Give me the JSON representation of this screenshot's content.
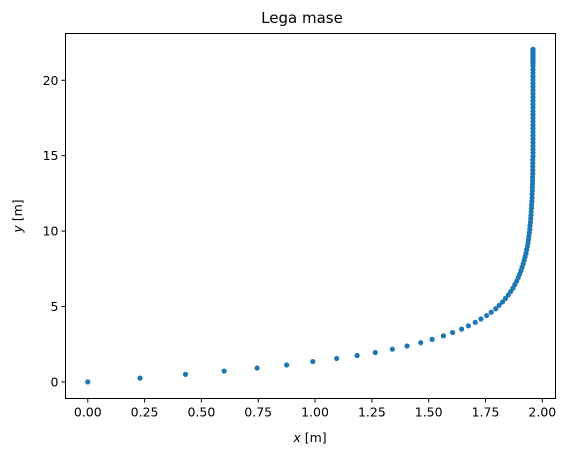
{
  "chart_data": {
    "type": "scatter",
    "title": "Lega mase",
    "xlabel_var": "x",
    "xlabel_unit": " [m]",
    "ylabel_var": "y",
    "ylabel_unit": " [m]",
    "xlim": [
      -0.098,
      2.058
    ],
    "ylim": [
      -1.1,
      23.1
    ],
    "xticks": [
      0.0,
      0.25,
      0.5,
      0.75,
      1.0,
      1.25,
      1.5,
      1.75,
      2.0
    ],
    "xtick_labels": [
      "0.00",
      "0.25",
      "0.50",
      "0.75",
      "1.00",
      "1.25",
      "1.50",
      "1.75",
      "2.00"
    ],
    "yticks": [
      0,
      5,
      10,
      15,
      20
    ],
    "ytick_labels": [
      "0",
      "5",
      "10",
      "15",
      "20"
    ],
    "grid": false,
    "marker_color": "#1f77b4",
    "series": [
      {
        "x": [
          0.0,
          0.23,
          0.43,
          0.6,
          0.745,
          0.875,
          0.99,
          1.095,
          1.185,
          1.265,
          1.34,
          1.405,
          1.465,
          1.515,
          1.565,
          1.605,
          1.645,
          1.675,
          1.705,
          1.73,
          1.755,
          1.775,
          1.795,
          1.81,
          1.825,
          1.838,
          1.85,
          1.861,
          1.871,
          1.879,
          1.887,
          1.894,
          1.9,
          1.906,
          1.911,
          1.916,
          1.92,
          1.924,
          1.928,
          1.931,
          1.934,
          1.937,
          1.939,
          1.941,
          1.943,
          1.945,
          1.946,
          1.948,
          1.949,
          1.95,
          1.951,
          1.952,
          1.953,
          1.954,
          1.955,
          1.955,
          1.956,
          1.956,
          1.957,
          1.957,
          1.957,
          1.958,
          1.958,
          1.958,
          1.958,
          1.958,
          1.959,
          1.959,
          1.959,
          1.959,
          1.959,
          1.959,
          1.959,
          1.959,
          1.959,
          1.959,
          1.959,
          1.959,
          1.959,
          1.959,
          1.959,
          1.959,
          1.959,
          1.959,
          1.959,
          1.959,
          1.959,
          1.959,
          1.959,
          1.959,
          1.959,
          1.959,
          1.959,
          1.959,
          1.959,
          1.959,
          1.959,
          1.959,
          1.959,
          1.959,
          1.959,
          1.959,
          1.959
        ],
        "y": [
          0.0,
          0.25,
          0.5,
          0.72,
          0.92,
          1.12,
          1.35,
          1.55,
          1.75,
          1.95,
          2.17,
          2.38,
          2.6,
          2.82,
          3.05,
          3.28,
          3.5,
          3.72,
          3.95,
          4.17,
          4.4,
          4.62,
          4.85,
          5.08,
          5.3,
          5.53,
          5.76,
          5.99,
          6.22,
          6.45,
          6.68,
          6.91,
          7.14,
          7.37,
          7.6,
          7.83,
          8.06,
          8.29,
          8.52,
          8.75,
          8.98,
          9.21,
          9.44,
          9.67,
          9.9,
          10.13,
          10.36,
          10.59,
          10.82,
          11.05,
          11.28,
          11.51,
          11.74,
          11.97,
          12.2,
          12.43,
          12.66,
          12.89,
          13.12,
          13.35,
          13.58,
          13.81,
          14.04,
          14.27,
          14.5,
          14.73,
          14.96,
          15.19,
          15.42,
          15.65,
          15.88,
          16.11,
          16.34,
          16.57,
          16.8,
          17.03,
          17.26,
          17.49,
          17.72,
          17.95,
          18.18,
          18.41,
          18.64,
          18.87,
          19.1,
          19.33,
          19.56,
          19.79,
          20.02,
          20.25,
          20.48,
          20.71,
          20.94,
          21.1,
          21.25,
          21.4,
          21.5,
          21.6,
          21.7,
          21.8,
          21.9,
          22.0,
          22.05
        ]
      }
    ]
  }
}
